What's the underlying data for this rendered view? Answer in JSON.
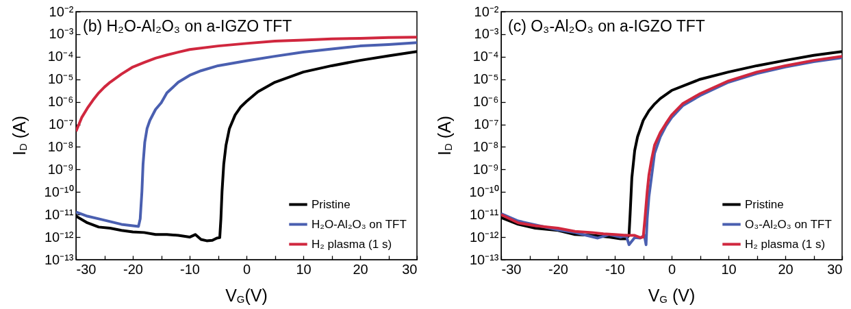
{
  "chart_data": [
    {
      "type": "line",
      "title": "(b) H₂O-Al₂O₃ on a-IGZO TFT",
      "xlabel": "V$_{G}$(V)",
      "ylabel": "I$_{D}$ (A)",
      "log": "y",
      "grid": false,
      "legend": "bottom right",
      "line_style": "solid",
      "marker": "none",
      "xlim": [
        -30,
        30
      ],
      "xticks": [
        -30,
        {
          "value": -25,
          "label": null
        },
        -20,
        {
          "value": -15,
          "label": null
        },
        -10,
        {
          "value": -5,
          "label": null
        },
        0,
        {
          "value": 5,
          "label": null
        },
        10,
        {
          "value": 15,
          "label": null
        },
        20,
        {
          "value": 25,
          "label": null
        },
        30
      ],
      "ylim": [
        1e-13,
        0.01
      ],
      "yticks": [
        {
          "value": 1e-13,
          "label": "10⁻¹³"
        },
        {
          "value": 1e-12,
          "label": "10⁻¹²"
        },
        {
          "value": 1e-11,
          "label": "10⁻¹¹"
        },
        {
          "value": 1e-10,
          "label": "10⁻¹⁰"
        },
        {
          "value": 1e-09,
          "label": "10⁻⁹"
        },
        {
          "value": 1e-08,
          "label": "10⁻⁸"
        },
        {
          "value": 1e-07,
          "label": "10⁻⁷"
        },
        {
          "value": 1e-06,
          "label": "10⁻⁶"
        },
        {
          "value": 1e-05,
          "label": "10⁻⁵"
        },
        {
          "value": 0.0001,
          "label": "10⁻⁴"
        },
        {
          "value": 0.001,
          "label": "10⁻³"
        },
        {
          "value": 0.01,
          "label": "10⁻²"
        }
      ],
      "series": [
        {
          "name": "Pristine",
          "color": "#000000",
          "x": [
            -30,
            -28,
            -26,
            -24,
            -22,
            -20,
            -18,
            -16,
            -14,
            -12,
            -10,
            -9,
            -8,
            -7,
            -6,
            -5.2,
            -4.7,
            -4.5,
            -4.3,
            -4,
            -3.6,
            -3,
            -2,
            -1,
            0,
            2,
            5,
            10,
            15,
            20,
            25,
            30
          ],
          "values": [
            8.5e-12,
            4.3e-12,
            2.8e-12,
            2.5e-12,
            2e-12,
            1.7e-12,
            1.6e-12,
            1.3e-12,
            1.3e-12,
            1.2e-12,
            1e-12,
            1.3e-12,
            7.9e-13,
            6.9e-13,
            7.2e-13,
            9.1e-13,
            9.5e-13,
            6.5e-12,
            1.05e-10,
            1.7e-09,
            1.2e-08,
            6.5e-08,
            2.6e-07,
            6e-07,
            1.05e-06,
            2.8e-06,
            7.4e-06,
            2.1e-05,
            4e-05,
            6.9e-05,
            0.00011,
            0.00017
          ]
        },
        {
          "name": "H₂O-Al₂O₃ on TFT",
          "color": "#4a5fb0",
          "x": [
            -30,
            -28,
            -26,
            -24,
            -22,
            -20,
            -19,
            -18.7,
            -18.4,
            -18.2,
            -17.9,
            -17.5,
            -17,
            -16,
            -15,
            -14,
            -12,
            -10,
            -8,
            -5,
            0,
            5,
            10,
            15,
            20,
            25,
            30
          ],
          "values": [
            1.3e-11,
            8.5e-12,
            6.5e-12,
            4.9e-12,
            3.7e-12,
            3.2e-12,
            3e-12,
            6.5e-12,
            1.05e-10,
            1.7e-09,
            1.6e-08,
            6.5e-08,
            1.5e-07,
            4.6e-07,
            9.1e-07,
            2.5e-06,
            7.4e-06,
            1.5e-05,
            2.4e-05,
            4e-05,
            6.6e-05,
            0.000105,
            0.00016,
            0.00022,
            0.0003,
            0.00035,
            0.00042
          ]
        },
        {
          "name": "H₂ plasma (1 s)",
          "color": "#d0273e",
          "x": [
            -30,
            -29,
            -28,
            -27,
            -26,
            -25,
            -24,
            -22,
            -20,
            -18,
            -16,
            -14,
            -12,
            -10,
            -5,
            0,
            5,
            10,
            15,
            20,
            25,
            30
          ],
          "values": [
            4.9e-08,
            2e-07,
            5.2e-07,
            1.2e-06,
            2.5e-06,
            4.5e-06,
            7.4e-06,
            1.7e-05,
            3.5e-05,
            5.6e-05,
            8.7e-05,
            0.00012,
            0.00016,
            0.00021,
            0.0003,
            0.00039,
            0.00049,
            0.00055,
            0.00062,
            0.00065,
            0.00071,
            0.00074
          ]
        }
      ]
    },
    {
      "type": "line",
      "title": "(c) O₃-Al₂O₃ on a-IGZO TFT",
      "xlabel": "V$_{G}$ (V)",
      "ylabel": "I$_{D}$ (A)",
      "log": "y",
      "grid": false,
      "legend": "bottom right",
      "line_style": "solid",
      "marker": "none",
      "xlim": [
        -30,
        30
      ],
      "xticks": [
        -30,
        {
          "value": -25,
          "label": null
        },
        -20,
        {
          "value": -15,
          "label": null
        },
        -10,
        {
          "value": -5,
          "label": null
        },
        0,
        {
          "value": 5,
          "label": null
        },
        10,
        {
          "value": 15,
          "label": null
        },
        20,
        {
          "value": 25,
          "label": null
        },
        30
      ],
      "ylim": [
        1e-13,
        0.01
      ],
      "yticks": [
        {
          "value": 1e-13,
          "label": "10⁻¹³"
        },
        {
          "value": 1e-12,
          "label": "10⁻¹²"
        },
        {
          "value": 1e-11,
          "label": "10⁻¹¹"
        },
        {
          "value": 1e-10,
          "label": "10⁻¹⁰"
        },
        {
          "value": 1e-09,
          "label": "10⁻⁹"
        },
        {
          "value": 1e-08,
          "label": "10⁻⁸"
        },
        {
          "value": 1e-07,
          "label": "10⁻⁷"
        },
        {
          "value": 1e-06,
          "label": "10⁻⁶"
        },
        {
          "value": 1e-05,
          "label": "10⁻⁵"
        },
        {
          "value": 0.0001,
          "label": "10⁻⁴"
        },
        {
          "value": 0.001,
          "label": "10⁻³"
        },
        {
          "value": 0.01,
          "label": "10⁻²"
        }
      ],
      "series": [
        {
          "name": "Pristine",
          "color": "#000000",
          "x": [
            -30,
            -27,
            -24,
            -20,
            -17,
            -14,
            -11,
            -9,
            -8,
            -7.5,
            -7.3,
            -7,
            -6.5,
            -6,
            -5,
            -4,
            -3,
            -2,
            0,
            5,
            10,
            15,
            20,
            25,
            30
          ],
          "values": [
            7.4e-12,
            3.7e-12,
            2.5e-12,
            2e-12,
            1.3e-12,
            1.2e-12,
            1e-12,
            8.5e-13,
            8.5e-13,
            1.2e-12,
            1.1e-11,
            4.3e-10,
            6.9e-09,
            2.8e-08,
            1.5e-07,
            4e-07,
            8e-07,
            1.4e-06,
            3.2e-06,
            1e-05,
            2.1e-05,
            4e-05,
            6.9e-05,
            0.000115,
            0.00017
          ]
        },
        {
          "name": "O₃-Al₂O₃ on TFT",
          "color": "#4a5fb0",
          "x": [
            -30,
            -27,
            -24,
            -20,
            -17,
            -15,
            -13,
            -11,
            -9,
            -8,
            -7.5,
            -6.5,
            -5.5,
            -4.8,
            -4.5,
            -4.3,
            -4,
            -3.5,
            -3,
            -2,
            -1,
            0,
            2,
            5,
            10,
            15,
            20,
            25,
            30
          ],
          "values": [
            1.1e-11,
            5.2e-12,
            3.5e-12,
            2.1e-12,
            1.6e-12,
            1.2e-12,
            9.1e-13,
            1.3e-12,
            1e-12,
            1.2e-12,
            4.6e-13,
            9.5e-13,
            9.1e-13,
            1.2e-12,
            4.6e-13,
            6.5e-12,
            6e-11,
            5.6e-10,
            5.2e-09,
            2.8e-08,
            8.5e-08,
            2e-07,
            6.9e-07,
            1.9e-06,
            7.4e-06,
            1.8e-05,
            3.5e-05,
            6e-05,
            9.1e-05
          ]
        },
        {
          "name": "H₂ plasma (1 s)",
          "color": "#d0273e",
          "x": [
            -30,
            -27,
            -24,
            -20,
            -17,
            -14,
            -12,
            -10,
            -8,
            -6.5,
            -5.5,
            -5,
            -4.7,
            -4.3,
            -4,
            -3.5,
            -3,
            -2,
            -1,
            0,
            2,
            5,
            10,
            15,
            20,
            25,
            30
          ],
          "values": [
            1e-11,
            4.3e-12,
            3.2e-12,
            2.5e-12,
            1.8e-12,
            1.6e-12,
            1.4e-12,
            1.3e-12,
            1.2e-12,
            1.2e-12,
            9.5e-13,
            1e-12,
            6.5e-12,
            1.05e-10,
            5.6e-10,
            3e-09,
            1.2e-08,
            4.3e-08,
            1.1e-07,
            2.6e-07,
            8.5e-07,
            2.3e-06,
            8.5e-06,
            2.1e-05,
            4e-05,
            6.9e-05,
            0.000105
          ]
        }
      ]
    }
  ]
}
